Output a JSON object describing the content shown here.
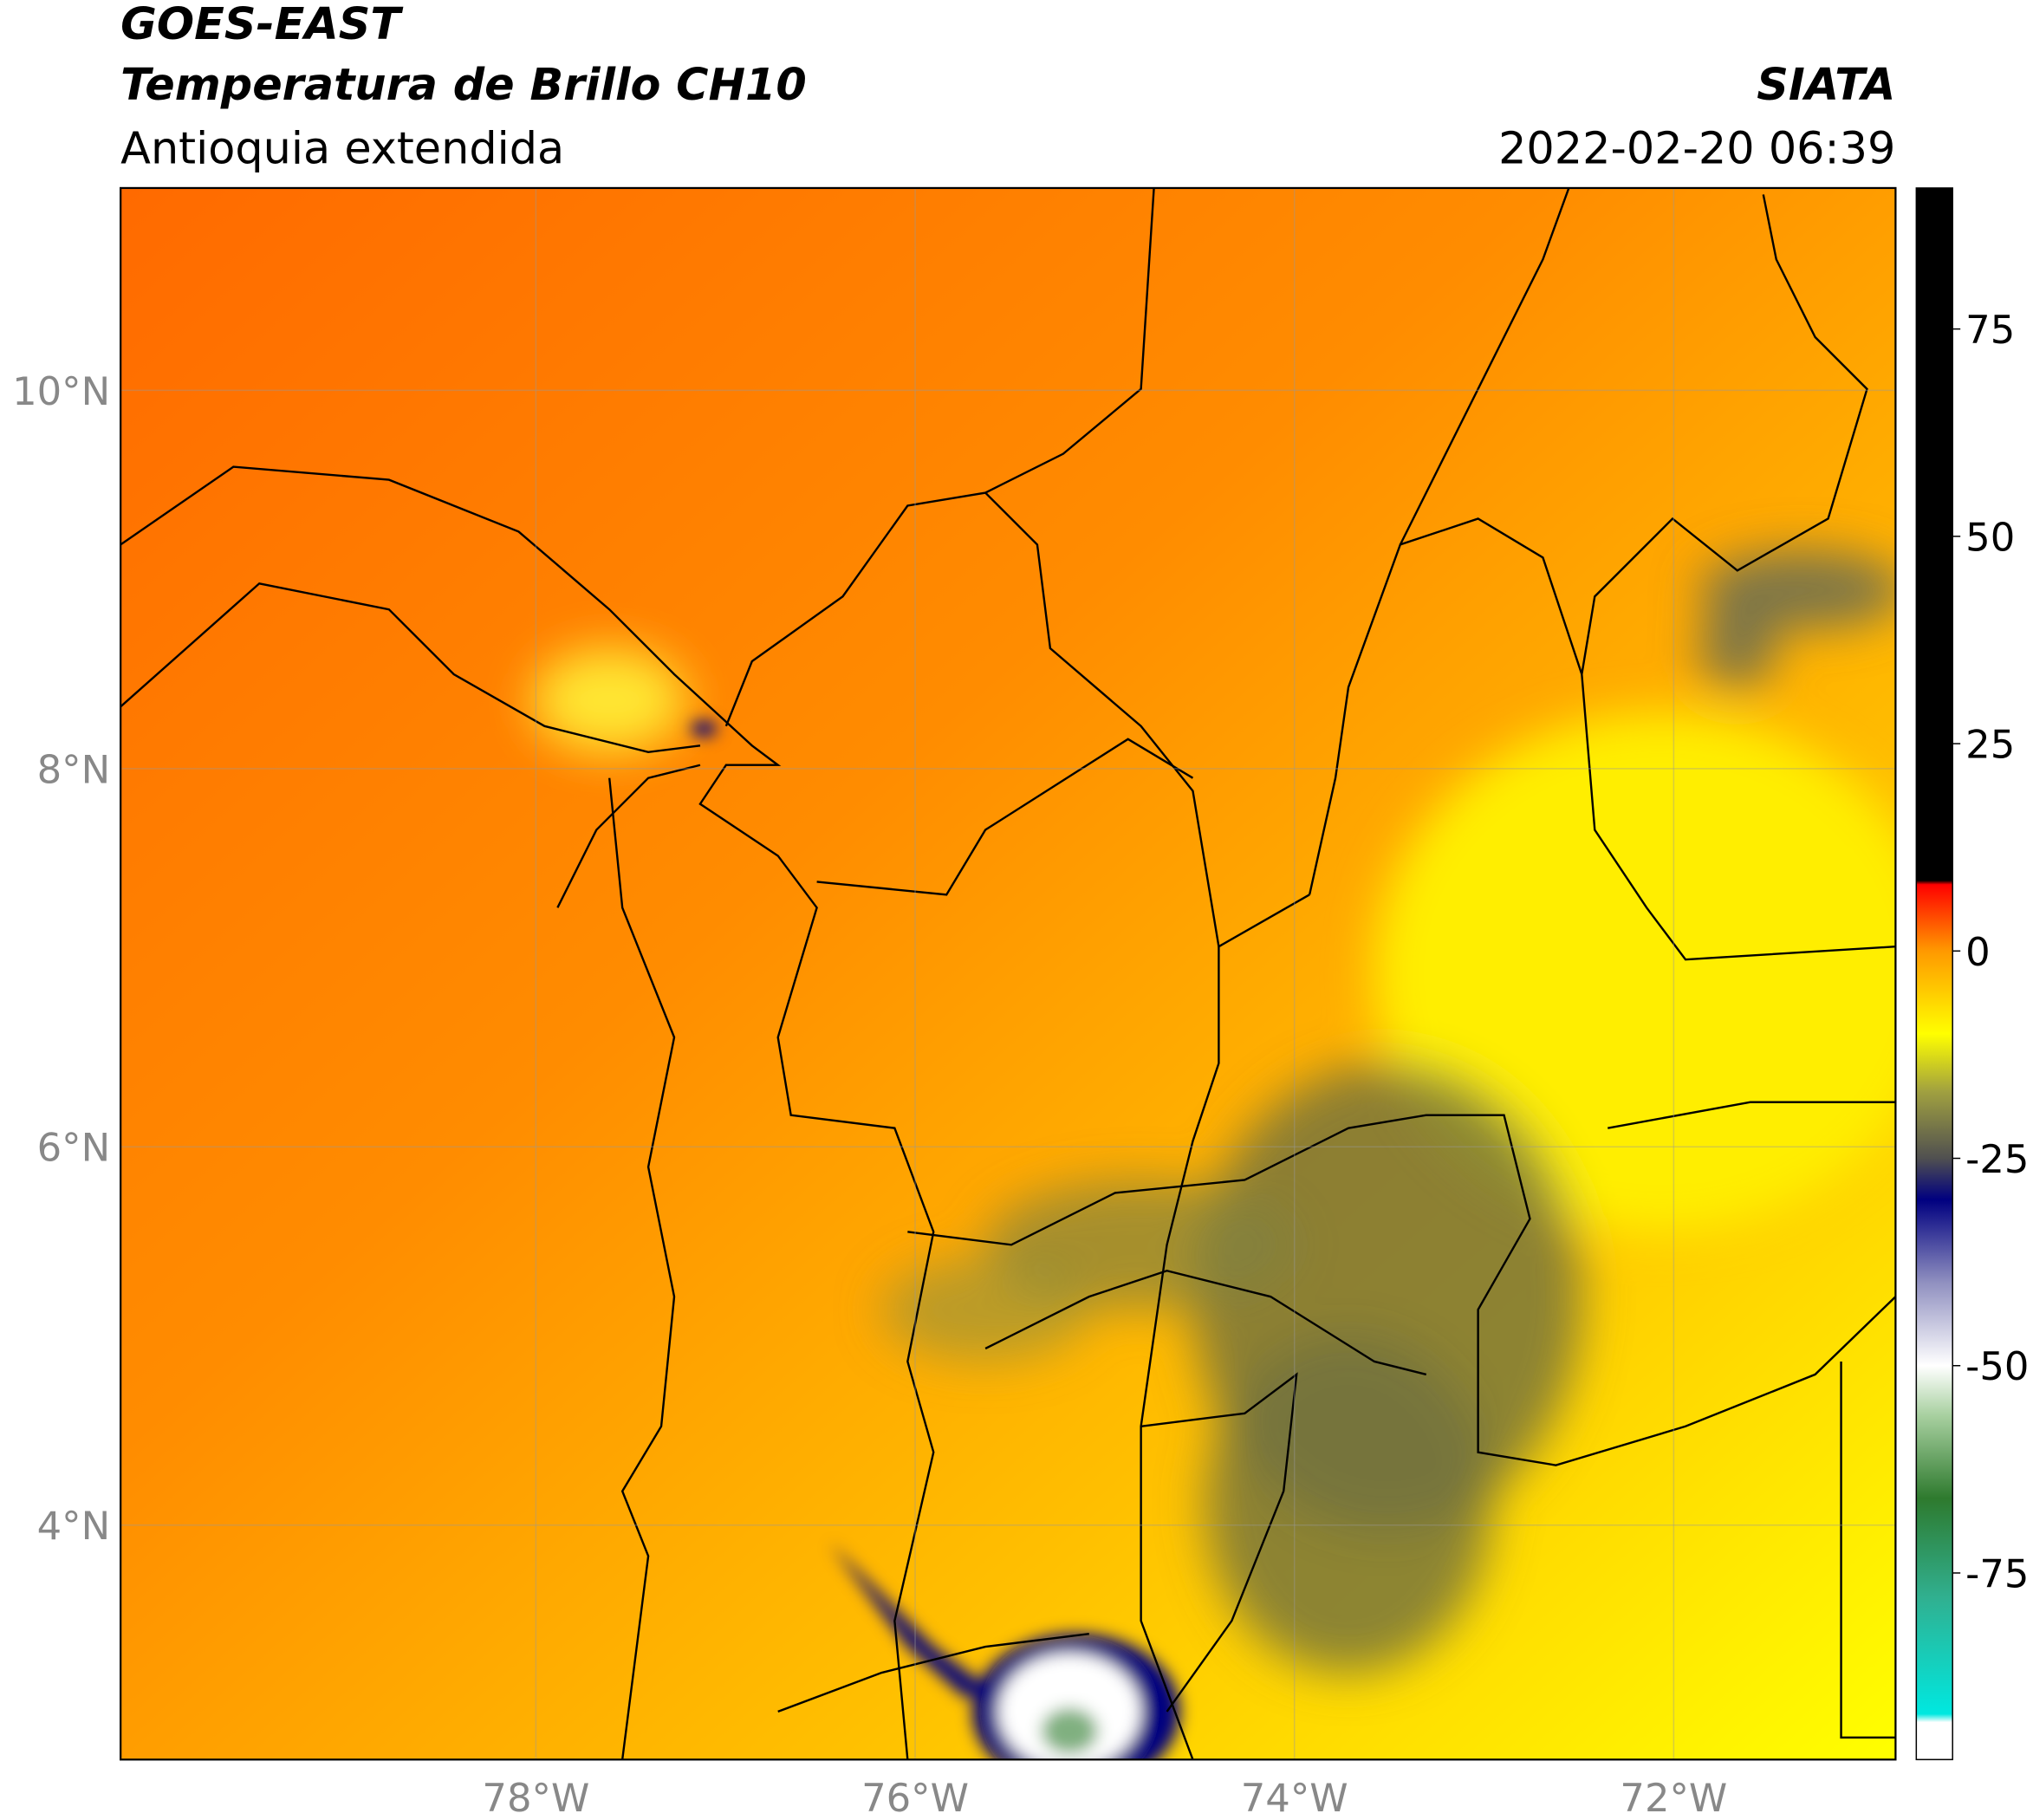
{
  "chart_data": {
    "type": "map",
    "title": "GOES-EAST",
    "subtitle": "Temperatura de Brillo CH10",
    "region": "Antioquia extendida",
    "source": "SIATA",
    "datetime": "2022-02-20 06:39",
    "xlim": [
      -80.19,
      -70.83
    ],
    "ylim": [
      2.76,
      11.07
    ],
    "xticks": [
      {
        "value": -78,
        "label": "78°W"
      },
      {
        "value": -76,
        "label": "76°W"
      },
      {
        "value": -74,
        "label": "74°W"
      },
      {
        "value": -72,
        "label": "72°W"
      }
    ],
    "yticks": [
      {
        "value": 4,
        "label": "4°N"
      },
      {
        "value": 6,
        "label": "6°N"
      },
      {
        "value": 8,
        "label": "8°N"
      },
      {
        "value": 10,
        "label": "10°N"
      }
    ],
    "grid": true,
    "colorbar": {
      "ylim": [
        -97.5,
        92
      ],
      "yticks": [
        -75,
        -50,
        -25,
        0,
        25,
        50,
        75
      ],
      "stops": [
        {
          "value": -97.5,
          "color": "#ffffff"
        },
        {
          "value": -93,
          "color": "#ffffff"
        },
        {
          "value": -92,
          "color": "#00e8e0"
        },
        {
          "value": -78,
          "color": "#30b090"
        },
        {
          "value": -66,
          "color": "#2e7a2e"
        },
        {
          "value": -56,
          "color": "#a8d0a0"
        },
        {
          "value": -50,
          "color": "#ffffff"
        },
        {
          "value": -40,
          "color": "#9090c0"
        },
        {
          "value": -30,
          "color": "#000080"
        },
        {
          "value": -25,
          "color": "#505050"
        },
        {
          "value": -17,
          "color": "#a0a040"
        },
        {
          "value": -10,
          "color": "#ffff00"
        },
        {
          "value": 0,
          "color": "#ff9900"
        },
        {
          "value": 8,
          "color": "#ff0000"
        },
        {
          "value": 8.5,
          "color": "#000000"
        },
        {
          "value": 92,
          "color": "#000000"
        }
      ]
    }
  }
}
